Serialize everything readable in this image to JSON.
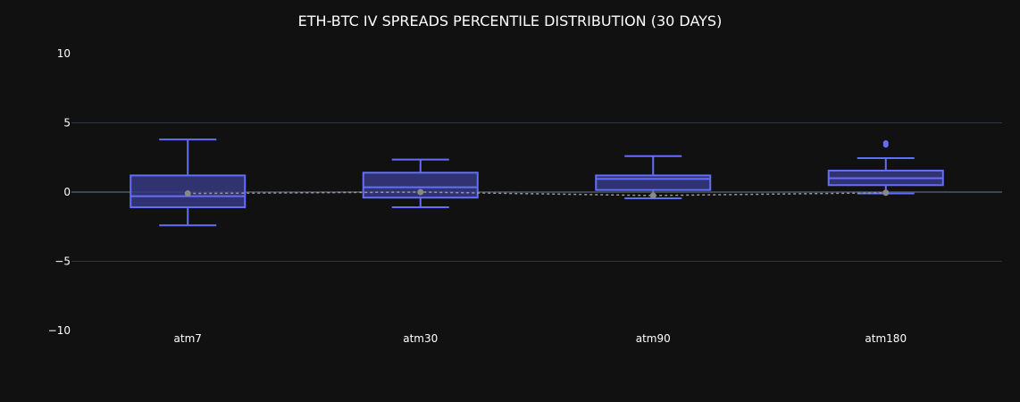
{
  "chart_data": {
    "type": "box",
    "title": "ETH-BTC IV SPREADS PERCENTILE DISTRIBUTION (30 DAYS)",
    "xlabel": "",
    "ylabel": "",
    "ylim": [
      -10,
      10
    ],
    "yticks": [
      10,
      5,
      0,
      -5,
      -10
    ],
    "ytick_labels": [
      "10",
      "5",
      "0",
      "−5",
      "−10"
    ],
    "grid": true,
    "categories": [
      "atm7",
      "atm30",
      "atm90",
      "atm180"
    ],
    "boxes": [
      {
        "name": "atm7",
        "min": -2.4,
        "q1": -1.1,
        "median": -0.3,
        "q3": 1.2,
        "max": 3.8,
        "mean": -0.1,
        "outliers": []
      },
      {
        "name": "atm30",
        "min": -1.1,
        "q1": -0.4,
        "median": 0.35,
        "q3": 1.4,
        "max": 2.35,
        "mean": 0.0,
        "outliers": []
      },
      {
        "name": "atm90",
        "min": -0.45,
        "q1": 0.15,
        "median": 0.95,
        "q3": 1.2,
        "max": 2.6,
        "mean": -0.25,
        "outliers": []
      },
      {
        "name": "atm180",
        "min": -0.1,
        "q1": 0.5,
        "median": 1.0,
        "q3": 1.55,
        "max": 2.45,
        "mean": -0.05,
        "outliers": [
          3.4,
          3.55
        ]
      }
    ],
    "colors": {
      "box_stroke": "#636efa",
      "box_fill": "#363a80",
      "mean_marker": "#888888",
      "mean_line": "#999999",
      "background": "#111111",
      "grid": "#2f3542",
      "zero_line": "#3c4654"
    }
  }
}
